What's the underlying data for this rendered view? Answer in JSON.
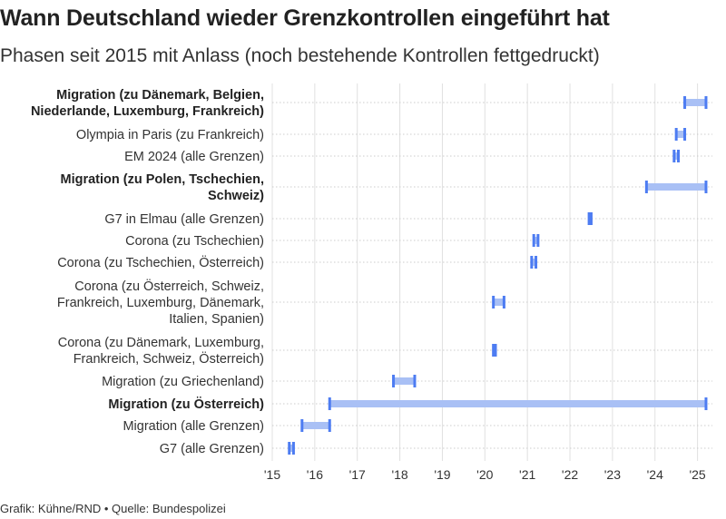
{
  "title": "Wann Deutschland wieder Grenzkontrollen eingeführt hat",
  "subtitle": "Phasen seit 2015 mit Anlass (noch bestehende Kontrollen fettgedruckt)",
  "footer": "Grafik: Kühne/RND • Quelle: Bundespolizei",
  "colors": {
    "bar": "#a9c0f5",
    "cap": "#4d7cf2",
    "grid": "#e0e0e0",
    "dot_line": "#cccccc"
  },
  "chart_data": {
    "type": "bar",
    "orientation": "horizontal",
    "title": "Wann Deutschland wieder Grenzkontrollen eingeführt hat",
    "subtitle": "Phasen seit 2015 mit Anlass (noch bestehende Kontrollen fettgedruckt)",
    "xlim": [
      2015.0,
      2025.35
    ],
    "x_ticks": [
      2015,
      2016,
      2017,
      2018,
      2019,
      2020,
      2021,
      2022,
      2023,
      2024,
      2025
    ],
    "x_tick_labels": [
      "'15",
      "'16",
      "'17",
      "'18",
      "'19",
      "'20",
      "'21",
      "'22",
      "'23",
      "'24",
      "'25"
    ],
    "grid": true,
    "rows": [
      {
        "label_lines": [
          "Migration (zu Dänemark, Belgien,",
          "Niederlande, Luxemburg, Frankreich)"
        ],
        "bold": true,
        "start": 2024.7,
        "end": 2025.2
      },
      {
        "label_lines": [
          "Olympia in Paris (zu Frankreich)"
        ],
        "bold": false,
        "start": 2024.5,
        "end": 2024.7
      },
      {
        "label_lines": [
          "EM 2024 (alle Grenzen)"
        ],
        "bold": false,
        "start": 2024.45,
        "end": 2024.55
      },
      {
        "label_lines": [
          "Migration (zu Polen, Tschechien,",
          "Schweiz)"
        ],
        "bold": true,
        "start": 2023.8,
        "end": 2025.2
      },
      {
        "label_lines": [
          "G7 in Elmau (alle Grenzen)"
        ],
        "bold": false,
        "start": 2022.45,
        "end": 2022.5
      },
      {
        "label_lines": [
          "Corona (zu Tschechien)"
        ],
        "bold": false,
        "start": 2021.15,
        "end": 2021.25
      },
      {
        "label_lines": [
          "Corona (zu Tschechien, Österreich)"
        ],
        "bold": false,
        "start": 2021.1,
        "end": 2021.2
      },
      {
        "label_lines": [
          "Corona (zu Österreich, Schweiz,",
          "Frankreich, Luxemburg, Dänemark,",
          "Italien, Spanien)"
        ],
        "bold": false,
        "start": 2020.2,
        "end": 2020.45
      },
      {
        "label_lines": [
          "Corona (zu Dänemark, Luxemburg,",
          "Frankreich, Schweiz, Österreich)"
        ],
        "bold": false,
        "start": 2020.2,
        "end": 2020.25
      },
      {
        "label_lines": [
          "Migration (zu Griechenland)"
        ],
        "bold": false,
        "start": 2017.85,
        "end": 2018.35
      },
      {
        "label_lines": [
          "Migration (zu Österreich)"
        ],
        "bold": true,
        "start": 2016.35,
        "end": 2025.2
      },
      {
        "label_lines": [
          "Migration (alle Grenzen)"
        ],
        "bold": false,
        "start": 2015.7,
        "end": 2016.35
      },
      {
        "label_lines": [
          "G7 (alle Grenzen)"
        ],
        "bold": false,
        "start": 2015.4,
        "end": 2015.5
      }
    ]
  }
}
